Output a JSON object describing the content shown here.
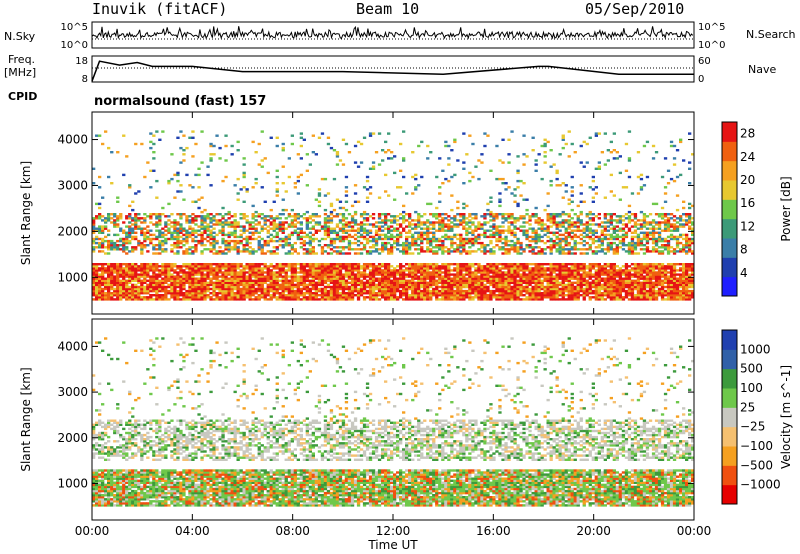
{
  "header": {
    "station": "Inuvik (fitACF)",
    "beam": "Beam 10",
    "date": "05/Sep/2010"
  },
  "panels": {
    "nsky_label": "N.Sky",
    "nsearch_label": "N.Search",
    "freq_label_1": "Freq.",
    "freq_label_2": "[MHz]",
    "cpid_label": "CPID",
    "nave_label": "Nave",
    "cpid_text": "normalsound (fast) 157"
  },
  "colors": {
    "power": [
      "#1f1fff",
      "#1f3faf",
      "#3a7ea8",
      "#3c9a78",
      "#6ec84a",
      "#e7c830",
      "#f5a020",
      "#f06010",
      "#e61414"
    ],
    "velocity": [
      "#e60000",
      "#f05010",
      "#f5a020",
      "#f5c070",
      "#c8c8c0",
      "#6ec84a",
      "#3c9a3c",
      "#3060a8",
      "#2040b0"
    ]
  },
  "chart_data": [
    {
      "type": "line",
      "name": "noise-panel",
      "left_axis_ticks": [
        "10^5",
        "10^0"
      ],
      "right_axis_ticks": [
        "10^5",
        "10^0"
      ],
      "series_labels": [
        "N.Sky",
        "N.Search"
      ]
    },
    {
      "type": "line",
      "name": "frequency-panel",
      "left_axis_ticks": [
        "18",
        "8"
      ],
      "right_axis_ticks": [
        "60",
        "0"
      ],
      "series_labels": [
        "Freq. [MHz]",
        "Nave"
      ]
    },
    {
      "type": "heatmap",
      "name": "power-panel",
      "ylabel": "Slant Range [km]",
      "yticks": [
        1000,
        2000,
        3000,
        4000
      ],
      "ylim": [
        200,
        4600
      ],
      "colorbar_label": "Power [dB]",
      "colorbar_ticks": [
        "4",
        "8",
        "12",
        "16",
        "20",
        "24",
        "28"
      ],
      "colorbar_range": [
        0,
        30
      ]
    },
    {
      "type": "heatmap",
      "name": "velocity-panel",
      "ylabel": "Slant Range [km]",
      "yticks": [
        1000,
        2000,
        3000,
        4000
      ],
      "ylim": [
        200,
        4600
      ],
      "colorbar_label": "Velocity [m s^-1]",
      "colorbar_ticks": [
        "1000",
        "500",
        "100",
        "25",
        "−25",
        "−100",
        "−500",
        "−1000"
      ]
    }
  ],
  "x_axis": {
    "label": "Time UT",
    "ticks": [
      "00:00",
      "04:00",
      "08:00",
      "12:00",
      "16:00",
      "20:00",
      "00:00"
    ],
    "range_hours": [
      0,
      24
    ]
  }
}
